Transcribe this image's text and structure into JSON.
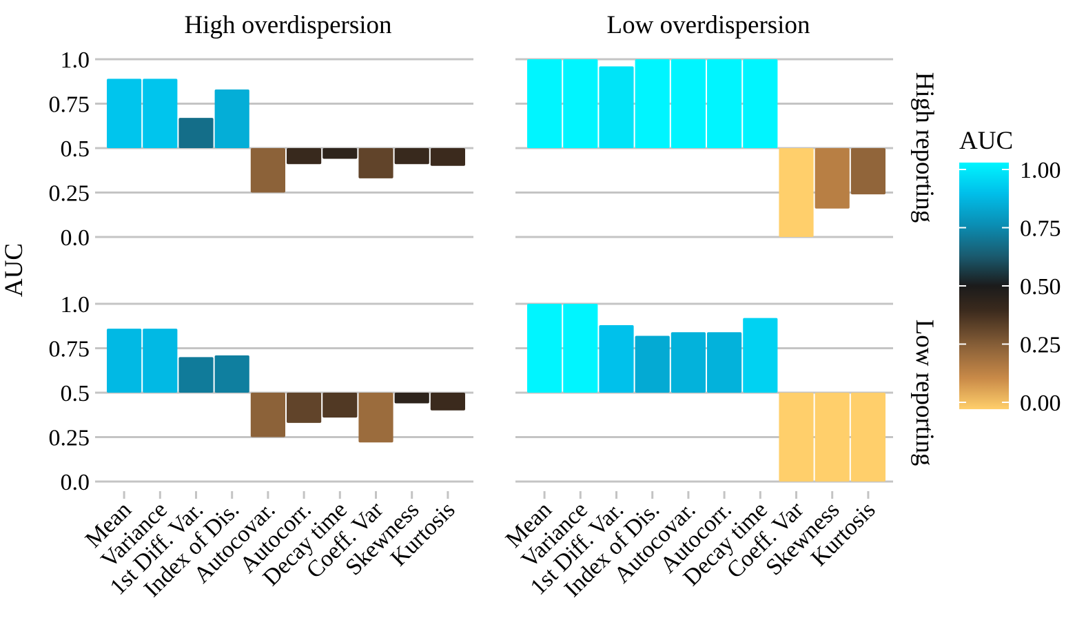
{
  "chart_data": {
    "type": "bar",
    "ylabel": "AUC",
    "baseline": 0.5,
    "ylim": [
      0,
      1
    ],
    "yticks": [
      "0.0",
      "0.25",
      "0.5",
      "0.75",
      "1.0"
    ],
    "categories": [
      "Mean",
      "Variance",
      "1st Diff. Var.",
      "Index of Dis.",
      "Autocovar.",
      "Autocorr.",
      "Decay time",
      "Coeff. Var",
      "Skewness",
      "Kurtosis"
    ],
    "col_facets": [
      "High overdispersion",
      "Low overdispersion"
    ],
    "row_facets": [
      "High reporting",
      "Low reporting"
    ],
    "panels": [
      {
        "row": "High reporting",
        "col": "High overdispersion",
        "values": [
          0.89,
          0.89,
          0.67,
          0.83,
          0.25,
          0.41,
          0.44,
          0.33,
          0.41,
          0.4
        ]
      },
      {
        "row": "High reporting",
        "col": "Low overdispersion",
        "values": [
          1.0,
          1.0,
          0.96,
          1.0,
          1.0,
          1.0,
          1.0,
          0.0,
          0.16,
          0.24
        ]
      },
      {
        "row": "Low reporting",
        "col": "High overdispersion",
        "values": [
          0.86,
          0.86,
          0.7,
          0.71,
          0.25,
          0.33,
          0.36,
          0.22,
          0.44,
          0.4
        ]
      },
      {
        "row": "Low reporting",
        "col": "Low overdispersion",
        "values": [
          1.0,
          1.0,
          0.88,
          0.82,
          0.84,
          0.84,
          0.92,
          0.0,
          0.0,
          0.0
        ]
      }
    ],
    "legend": {
      "title": "AUC",
      "position": "right",
      "tick_labels": [
        "1.00",
        "0.75",
        "0.50",
        "0.25",
        "0.00"
      ],
      "range": [
        0,
        1
      ],
      "colors": [
        "#FFCF6B",
        "#C98A48",
        "#8C6239",
        "#3B2A1D",
        "#1B1B1B",
        "#1A5A6E",
        "#0A8FB5",
        "#00BFEA",
        "#00F5FF"
      ]
    },
    "grid": true
  }
}
